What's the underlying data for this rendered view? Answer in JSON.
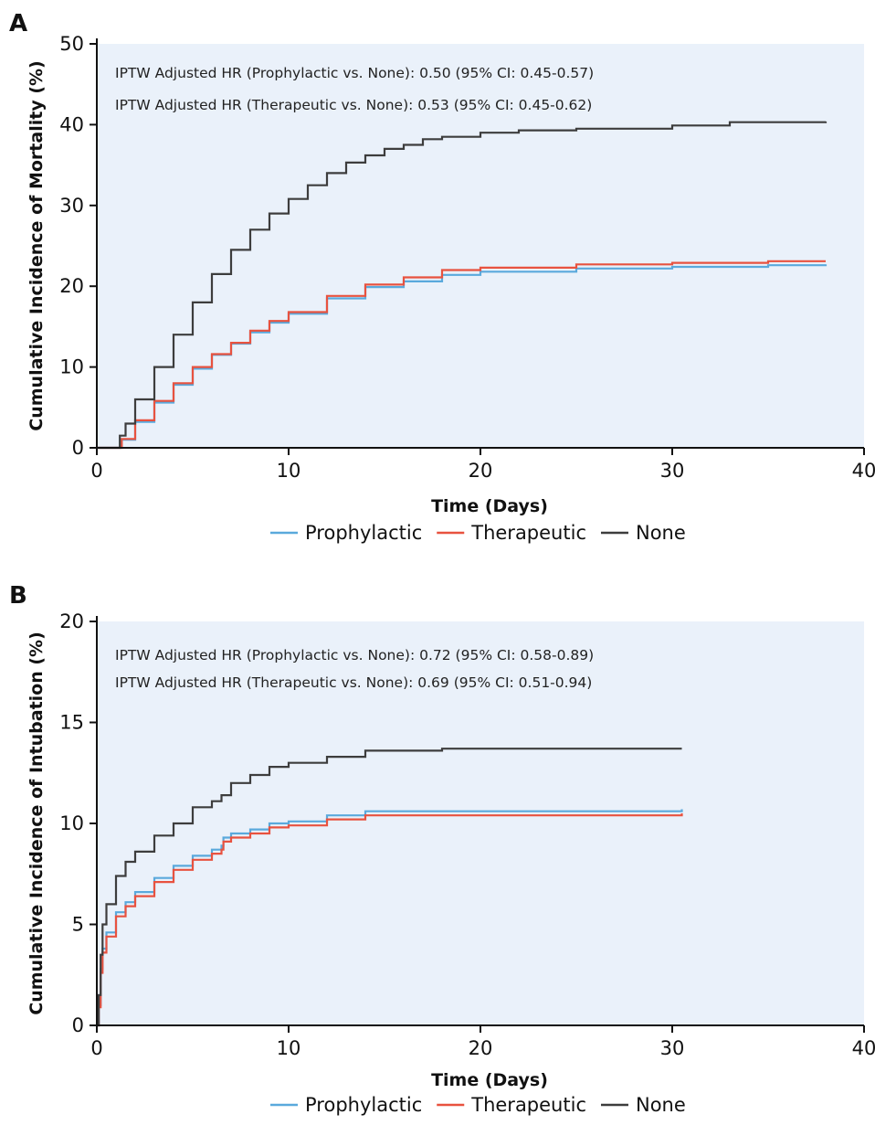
{
  "colors": {
    "prophylactic": "#5aa9dc",
    "therapeutic": "#e8523f",
    "none": "#3d3d3d",
    "plot_bg": "#eaf1fa"
  },
  "chart_data": [
    {
      "panel": "A",
      "type": "line",
      "xlabel": "Time (Days)",
      "ylabel": "Cumulative Incidence of Mortality (%)",
      "xlim": [
        0,
        40
      ],
      "ylim": [
        0,
        50
      ],
      "xticks": [
        "0",
        "10",
        "20",
        "30",
        "40"
      ],
      "yticks": [
        "0",
        "10",
        "20",
        "30",
        "40",
        "50"
      ],
      "annotations": [
        "IPTW Adjusted HR (Prophylactic vs. None): 0.50 (95% CI: 0.45-0.57)",
        "IPTW Adjusted HR (Therapeutic vs. None): 0.53 (95% CI: 0.45-0.62)"
      ],
      "legend_position": "bottom",
      "series": [
        {
          "name": "Prophylactic",
          "color": "#5aa9dc",
          "x": [
            0,
            1,
            1.3,
            2,
            3,
            4,
            5,
            6,
            7,
            8,
            9,
            10,
            12,
            14,
            16,
            18,
            20,
            25,
            30,
            35,
            38
          ],
          "y": [
            0,
            0,
            1.0,
            3.2,
            5.6,
            7.8,
            9.8,
            11.5,
            12.9,
            14.3,
            15.5,
            16.6,
            18.5,
            19.9,
            20.6,
            21.4,
            21.8,
            22.2,
            22.4,
            22.6,
            22.7
          ]
        },
        {
          "name": "Therapeutic",
          "color": "#e8523f",
          "x": [
            0,
            1,
            1.3,
            2,
            3,
            4,
            5,
            6,
            7,
            8,
            9,
            10,
            12,
            14,
            16,
            18,
            20,
            25,
            30,
            35,
            38
          ],
          "y": [
            0,
            0,
            1.1,
            3.4,
            5.8,
            8.0,
            10.0,
            11.6,
            13.0,
            14.5,
            15.7,
            16.8,
            18.8,
            20.2,
            21.1,
            22.0,
            22.3,
            22.7,
            22.9,
            23.1,
            23.1
          ]
        },
        {
          "name": "None",
          "color": "#3d3d3d",
          "x": [
            0,
            1,
            1.2,
            1.5,
            2,
            3,
            4,
            5,
            6,
            7,
            8,
            9,
            10,
            11,
            12,
            13,
            14,
            15,
            16,
            17,
            18,
            20,
            22,
            25,
            30,
            33,
            38
          ],
          "y": [
            0,
            0,
            1.5,
            3.0,
            6.0,
            10.0,
            14.0,
            18.0,
            21.5,
            24.5,
            27.0,
            29.0,
            30.8,
            32.5,
            34.0,
            35.3,
            36.2,
            37.0,
            37.5,
            38.2,
            38.5,
            39.0,
            39.3,
            39.5,
            39.9,
            40.3,
            40.4
          ]
        }
      ]
    },
    {
      "panel": "B",
      "type": "line",
      "xlabel": "Time (Days)",
      "ylabel": "Cumulative Incidence of Intubation (%)",
      "xlim": [
        0,
        40
      ],
      "ylim": [
        0,
        20
      ],
      "xticks": [
        "0",
        "10",
        "20",
        "30",
        "40"
      ],
      "yticks": [
        "0",
        "5",
        "10",
        "15",
        "20"
      ],
      "annotations": [
        "IPTW Adjusted HR (Prophylactic vs. None): 0.72 (95% CI: 0.58-0.89)",
        "IPTW Adjusted HR (Therapeutic vs. None): 0.69 (95% CI: 0.51-0.94)"
      ],
      "legend_position": "bottom",
      "series": [
        {
          "name": "Prophylactic",
          "color": "#5aa9dc",
          "x": [
            0,
            0.1,
            0.2,
            0.3,
            0.5,
            1,
            1.5,
            2,
            3,
            4,
            5,
            6,
            6.5,
            6.6,
            7,
            8,
            9,
            10,
            12,
            14,
            16,
            20,
            25,
            30.5
          ],
          "y": [
            0,
            1.0,
            2.8,
            3.8,
            4.6,
            5.6,
            6.1,
            6.6,
            7.3,
            7.9,
            8.4,
            8.7,
            8.9,
            9.3,
            9.5,
            9.7,
            10.0,
            10.1,
            10.4,
            10.6,
            10.6,
            10.6,
            10.6,
            10.7
          ]
        },
        {
          "name": "Therapeutic",
          "color": "#e8523f",
          "x": [
            0,
            0.1,
            0.2,
            0.3,
            0.5,
            1,
            1.5,
            2,
            3,
            4,
            5,
            6,
            6.5,
            6.6,
            7,
            8,
            9,
            10,
            12,
            14,
            16,
            20,
            25,
            30.5
          ],
          "y": [
            0,
            0.9,
            2.6,
            3.6,
            4.4,
            5.4,
            5.9,
            6.4,
            7.1,
            7.7,
            8.2,
            8.5,
            8.7,
            9.1,
            9.3,
            9.5,
            9.8,
            9.9,
            10.2,
            10.4,
            10.4,
            10.4,
            10.4,
            10.5
          ]
        },
        {
          "name": "None",
          "color": "#3d3d3d",
          "x": [
            0,
            0.1,
            0.2,
            0.3,
            0.5,
            1,
            1.5,
            2,
            3,
            4,
            5,
            6,
            6.5,
            7,
            8,
            9,
            10,
            12,
            14,
            16,
            18,
            20,
            25,
            30.5
          ],
          "y": [
            0,
            1.5,
            3.5,
            5.0,
            6.0,
            7.4,
            8.1,
            8.6,
            9.4,
            10.0,
            10.8,
            11.1,
            11.4,
            12.0,
            12.4,
            12.8,
            13.0,
            13.3,
            13.6,
            13.6,
            13.7,
            13.7,
            13.7,
            13.7
          ]
        }
      ]
    }
  ]
}
